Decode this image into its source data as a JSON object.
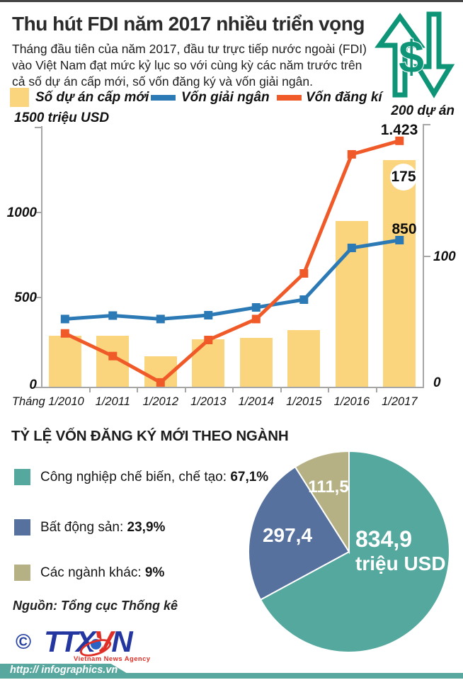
{
  "header": {
    "title": "Thu hút FDI năm 2017 nhiều triển vọng",
    "subtitle_lines": [
      "Tháng đầu tiên của năm 2017, đầu tư trực tiếp nước ngoài (FDI)",
      "vào Việt Nam đạt mức kỷ lục so với cùng kỳ các năm trước trên",
      "cả số dự án cấp mới, số vốn đăng ký và vốn giải ngân."
    ],
    "icon": "dollar-up-down-arrows-icon"
  },
  "colors": {
    "bar_yellow": "#FBD57E",
    "line_blue": "#2B79B5",
    "line_orange": "#F05A28",
    "pie_teal": "#55A89E",
    "pie_blue": "#57719F",
    "pie_khaki": "#B5B185",
    "icon_green": "#0E9578",
    "footer_teal": "#58A8A0",
    "logo_blue": "#2436A0",
    "logo_red": "#E02F27"
  },
  "chart_data": [
    {
      "type": "bar",
      "subtype": "combo-bar-line",
      "categories": [
        "Tháng 1/2010",
        "1/2011",
        "1/2012",
        "1/2013",
        "1/2014",
        "1/2015",
        "1/2016",
        "1/2017"
      ],
      "series": [
        {
          "name": "Số dự án cấp mới",
          "type": "bar",
          "axis": "right",
          "color": "#FBD57E",
          "values": [
            40,
            40,
            24,
            37,
            38,
            44,
            128,
            175
          ]
        },
        {
          "name": "Vốn giải ngân",
          "type": "line",
          "axis": "left",
          "color": "#2B79B5",
          "values": [
            395,
            415,
            395,
            417,
            462,
            507,
            805,
            850
          ]
        },
        {
          "name": "Vốn đăng kí",
          "type": "line",
          "axis": "left",
          "color": "#F05A28",
          "values": [
            312,
            181,
            29,
            274,
            395,
            658,
            1345,
            1423
          ]
        }
      ],
      "left_axis": {
        "label": "1500 triệu USD",
        "max": 1500,
        "ticks": [
          "0",
          "500",
          "1000"
        ]
      },
      "right_axis": {
        "label": "200 dự án",
        "max": 200,
        "ticks": [
          "0",
          "100"
        ]
      },
      "annotations": [
        {
          "text": "1.423",
          "series": "Vốn đăng kí",
          "category": "1/2017"
        },
        {
          "text": "850",
          "series": "Vốn giải ngân",
          "category": "1/2017"
        },
        {
          "text": "175",
          "series": "Số dự án cấp mới",
          "category": "1/2017",
          "style": "white-circle"
        }
      ],
      "legend_position": "top",
      "grid": false
    },
    {
      "type": "pie",
      "title": "TỶ LỆ VỐN ĐĂNG KÝ MỚI THEO NGÀNH",
      "values_pct": [
        67.1,
        23.9,
        9.0
      ],
      "slices": [
        {
          "label": "Công nghiệp chế biến, chế tạo: ",
          "pct": "67,1%",
          "value_label_line1": "834,9",
          "value_label_line2": "triệu USD",
          "color": "#55A89E"
        },
        {
          "label": "Bất động sản: ",
          "pct": "23,9%",
          "value_label_line1": "297,4",
          "value_label_line2": "",
          "color": "#57719F"
        },
        {
          "label": "Các ngành khác: ",
          "pct": "9%",
          "value_label_line1": "111,5",
          "value_label_line2": "",
          "color": "#B5B185"
        }
      ],
      "start_angle_deg": 0,
      "direction": "clockwise"
    }
  ],
  "source": "Nguồn: Tổng cục Thống kê",
  "logo": {
    "copyright": "©",
    "ttx": "TTX",
    "v": "V",
    "n": "N",
    "subtext": "Vietnam News Agency"
  },
  "footer": {
    "url": "http:// infographics.vn"
  }
}
